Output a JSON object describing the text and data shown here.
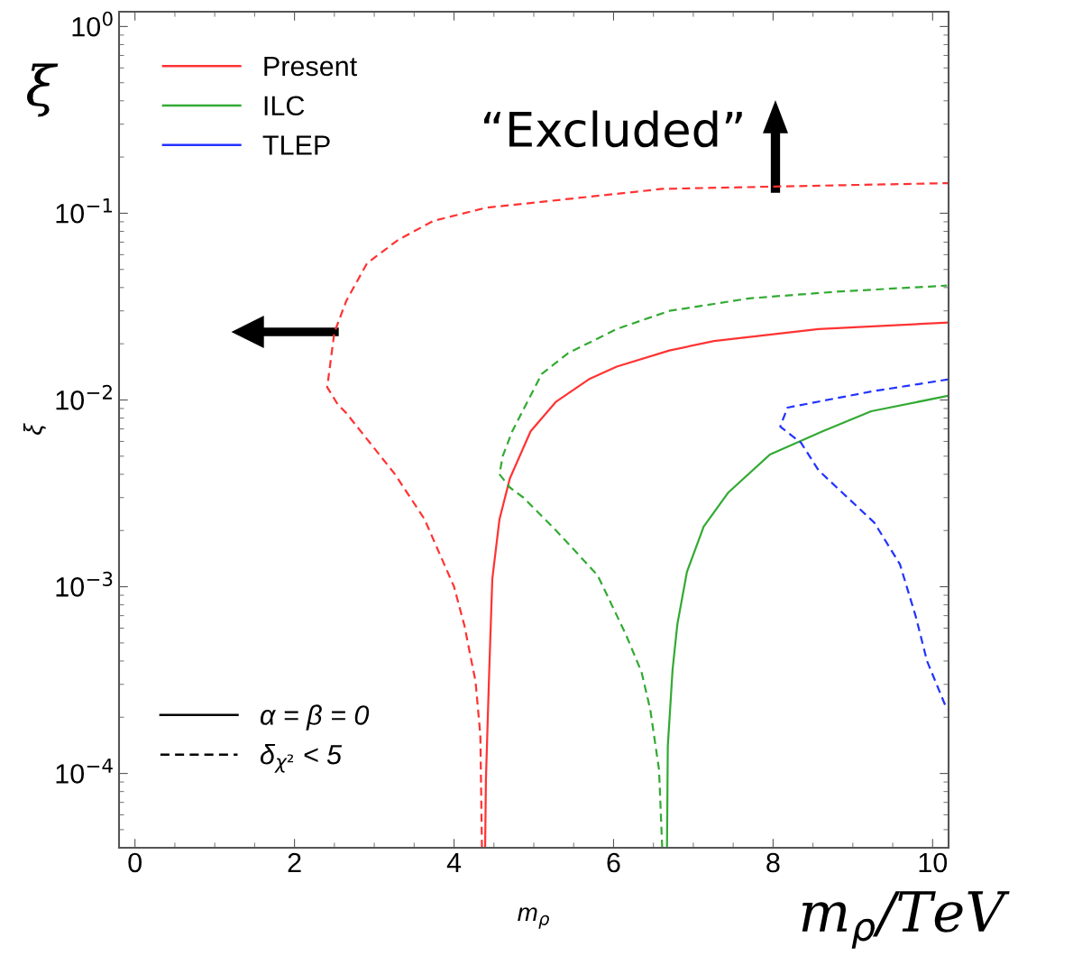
{
  "chart_data": {
    "type": "line",
    "xlabel": "m$_{ρ}$",
    "ylabel": "ξ",
    "log": "y",
    "xlim": [
      -0.2,
      10.2
    ],
    "xticks": [
      0,
      2,
      4,
      6,
      8,
      10
    ],
    "ylim": [
      4e-05,
      1.2
    ],
    "yticks": [
      {
        "value": 1,
        "label": "10$^{0}$"
      },
      {
        "value": 0.1,
        "label": "10$^{−1}$"
      },
      {
        "value": 0.01,
        "label": "10$^{−2}$"
      },
      {
        "value": 0.001,
        "label": "10$^{−3}$"
      },
      {
        "value": 0.0001,
        "label": "10$^{−4}$"
      }
    ],
    "grid": false,
    "legend": "top left",
    "marker": "none",
    "series": [
      {
        "name": "Present",
        "color": "#ff3333",
        "line_style": "solid",
        "x": [
          4.39,
          4.4,
          4.44,
          4.48,
          4.57,
          4.7,
          4.96,
          5.28,
          5.69,
          6.04,
          6.7,
          7.26,
          8.57,
          10.2
        ],
        "values": [
          4e-05,
          9.3e-05,
          0.00034,
          0.0011,
          0.0023,
          0.0038,
          0.0068,
          0.0098,
          0.0129,
          0.0151,
          0.0184,
          0.0207,
          0.024,
          0.026
        ]
      },
      {
        "color": "#ff3333",
        "line_style": "dashed",
        "x": [
          4.35,
          4.33,
          4.27,
          4.13,
          4.0,
          3.63,
          3.26,
          2.83,
          2.65,
          2.54,
          2.41,
          2.5,
          2.65,
          2.91,
          3.3,
          3.74,
          4.4,
          5.09,
          6.61,
          8.03,
          10.2
        ],
        "values": [
          4e-05,
          0.00016,
          0.00031,
          0.00062,
          0.001,
          0.0023,
          0.004,
          0.0068,
          0.0085,
          0.0095,
          0.0117,
          0.023,
          0.034,
          0.054,
          0.072,
          0.091,
          0.107,
          0.115,
          0.135,
          0.139,
          0.145
        ]
      },
      {
        "name": "ILC",
        "color": "#33aa33",
        "line_style": "solid",
        "x": [
          6.67,
          6.68,
          6.74,
          6.8,
          6.92,
          7.13,
          7.44,
          7.96,
          8.62,
          9.23,
          10.18
        ],
        "values": [
          4e-05,
          0.00014,
          0.00036,
          0.00063,
          0.0012,
          0.0021,
          0.0032,
          0.0051,
          0.0068,
          0.0087,
          0.0105
        ]
      },
      {
        "color": "#33aa33",
        "line_style": "dashed",
        "x": [
          6.61,
          6.57,
          6.46,
          6.35,
          6.15,
          5.8,
          5.28,
          4.87,
          4.7,
          4.57,
          4.61,
          4.73,
          5.1,
          5.43,
          6.04,
          6.7,
          7.7,
          8.79,
          10.18
        ],
        "values": [
          4e-05,
          0.000105,
          0.00022,
          0.00035,
          0.00056,
          0.00115,
          0.002,
          0.003,
          0.0034,
          0.004,
          0.005,
          0.0068,
          0.0138,
          0.0178,
          0.024,
          0.03,
          0.035,
          0.038,
          0.041
        ]
      },
      {
        "name": "TLEP",
        "color": "#2233ff",
        "line_style": "dashed",
        "x": [
          10.2,
          9.23,
          8.18,
          8.09,
          8.35,
          8.57,
          9.27,
          9.59,
          9.79,
          9.93,
          10.18
        ],
        "values": [
          0.0129,
          0.0111,
          0.0091,
          0.0072,
          0.0059,
          0.0042,
          0.0022,
          0.00132,
          0.00069,
          0.0004,
          0.00022
        ]
      }
    ],
    "annotations": [
      "α = β = 0",
      "δ$_{χ²}$ < 5",
      "“Excluded”",
      "ξ",
      "m$_{ρ}$/TeV"
    ]
  }
}
